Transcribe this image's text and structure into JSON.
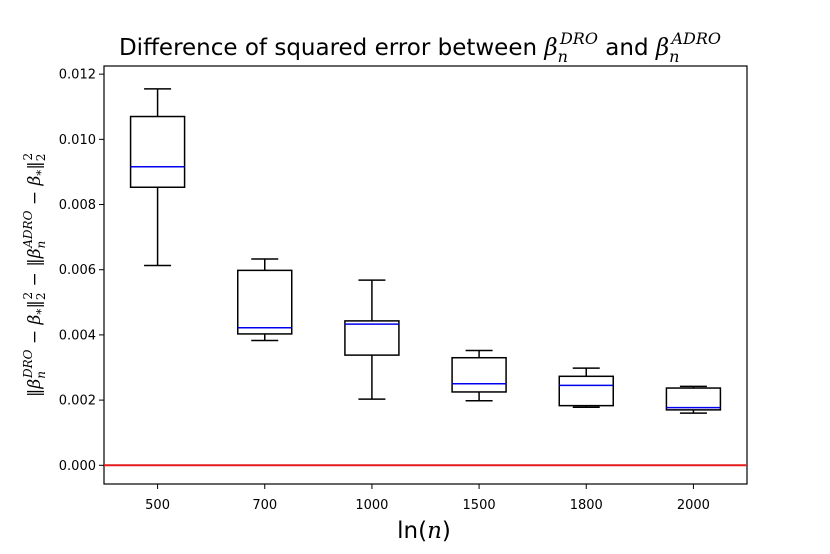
{
  "chart_data": {
    "type": "box",
    "title": {
      "prefix": "Difference of squared error between ",
      "beta1": "β",
      "beta1_sub": "n",
      "beta1_sup": "DRO",
      "mid": " and ",
      "beta2": "β",
      "beta2_sub": "n",
      "beta2_sup": "ADRO"
    },
    "xlabel": {
      "pre": "ln(",
      "var": "n",
      "post": ")"
    },
    "ylabel": {
      "p1": "‖β",
      "p1_sub": "n",
      "p1_sup": "DRO",
      "p2": " − β",
      "p2_sub": "*",
      "p3": "‖",
      "p3_sub": "2",
      "p3_sup": "2",
      "p4": " − ‖β",
      "p4_sub": "n",
      "p4_sup": "ADRO",
      "p5": " − β",
      "p5_sub": "*",
      "p6": "‖",
      "p6_sub": "2",
      "p6_sup": "2"
    },
    "categories": [
      "500",
      "700",
      "1000",
      "1500",
      "1800",
      "2000"
    ],
    "boxes": [
      {
        "whislo": 0.00613,
        "q1": 0.00853,
        "med": 0.00916,
        "q3": 0.0107,
        "whishi": 0.01155
      },
      {
        "whislo": 0.00383,
        "q1": 0.00403,
        "med": 0.00422,
        "q3": 0.00598,
        "whishi": 0.00633
      },
      {
        "whislo": 0.00203,
        "q1": 0.00338,
        "med": 0.00433,
        "q3": 0.00443,
        "whishi": 0.00568
      },
      {
        "whislo": 0.00198,
        "q1": 0.00225,
        "med": 0.0025,
        "q3": 0.0033,
        "whishi": 0.00352
      },
      {
        "whislo": 0.00178,
        "q1": 0.00183,
        "med": 0.00245,
        "q3": 0.00273,
        "whishi": 0.00298
      },
      {
        "whislo": 0.0016,
        "q1": 0.0017,
        "med": 0.00177,
        "q3": 0.00237,
        "whishi": 0.00242
      }
    ],
    "yticks": [
      0.0,
      0.002,
      0.004,
      0.006,
      0.008,
      0.01,
      0.012
    ],
    "ytick_labels": [
      "0.000",
      "0.002",
      "0.004",
      "0.006",
      "0.008",
      "0.010",
      "0.012"
    ],
    "ylim": [
      -0.000574,
      0.01225
    ],
    "reference_line": {
      "y": 0.0,
      "color": "#e41a1c"
    },
    "colors": {
      "box": "#000000",
      "median": "#0000ee",
      "reference": "#e41a1c"
    },
    "grid": false,
    "legend": "none"
  }
}
